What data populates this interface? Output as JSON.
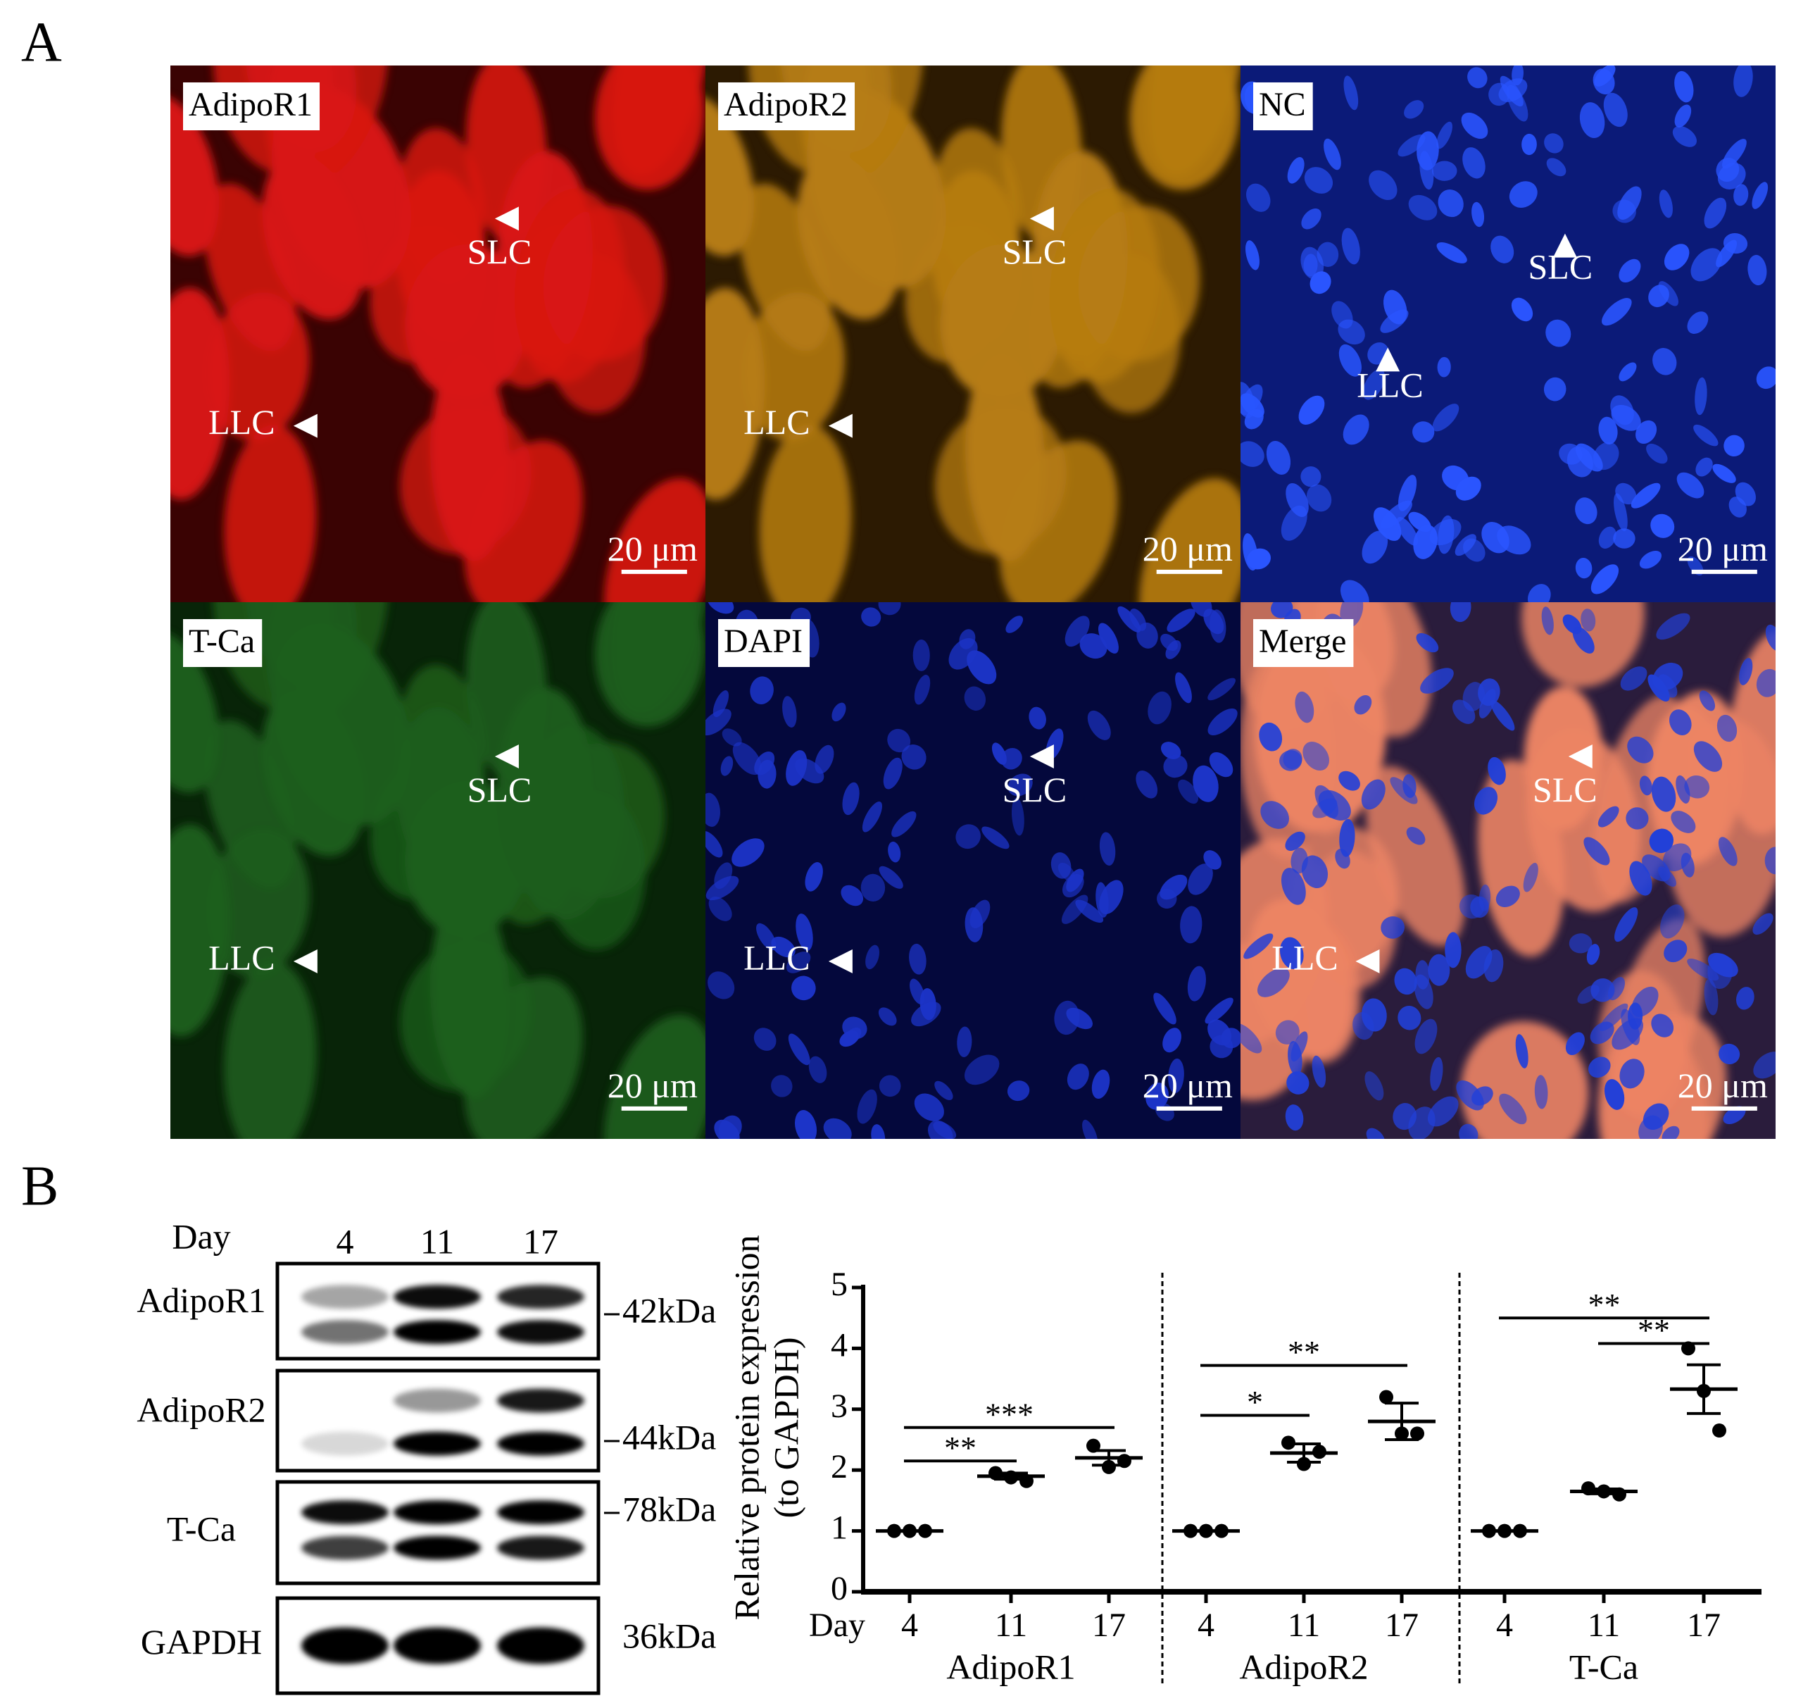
{
  "panel_a": {
    "letter": "A",
    "panels": [
      {
        "label": "AdipoR1",
        "color": "#e8241e"
      },
      {
        "label": "AdipoR2",
        "color": "#a8901c"
      },
      {
        "label": "NC",
        "color": "#000000"
      },
      {
        "label": "T-Ca",
        "color": "#22c030"
      },
      {
        "label": "DAPI",
        "color": "#1a1ae0"
      },
      {
        "label": "Merge",
        "color": "#000000"
      }
    ],
    "markers": {
      "slc": "SLC",
      "llc": "LLC"
    },
    "scale_bar": "20 μm"
  },
  "panel_b": {
    "letter": "B",
    "blot": {
      "day_label": "Day",
      "lanes": [
        "4",
        "11",
        "17"
      ],
      "rows": [
        {
          "protein": "AdipoR1",
          "size": "42kDa"
        },
        {
          "protein": "AdipoR2",
          "size": "44kDa"
        },
        {
          "protein": "T-Ca",
          "size": "78kDa"
        },
        {
          "protein": "GAPDH",
          "size": "36kDa"
        }
      ]
    }
  },
  "chart_data": {
    "type": "dotplot",
    "ylabel": [
      "Relative protein expression",
      "(to GAPDH)"
    ],
    "xlabel": "Day",
    "color": "#000000",
    "ylim": [
      0,
      5
    ],
    "yticks": [
      0,
      1,
      2,
      3,
      4,
      5
    ],
    "categories": [
      "4",
      "11",
      "17"
    ],
    "groups": [
      {
        "name": "AdipoR1",
        "points": [
          [
            1,
            1,
            1
          ],
          [
            1.95,
            1.88,
            1.82
          ],
          [
            2.4,
            2.05,
            2.15
          ]
        ],
        "mean": [
          1,
          1.9,
          2.2
        ],
        "sem": [
          0,
          0.05,
          0.12
        ],
        "significance": [
          {
            "label": "**",
            "between": [
              "4",
              "11"
            ]
          },
          {
            "label": "***",
            "between": [
              "4",
              "17"
            ]
          }
        ]
      },
      {
        "name": "AdipoR2",
        "points": [
          [
            1,
            1,
            1
          ],
          [
            2.45,
            2.1,
            2.3
          ],
          [
            3.2,
            2.6,
            2.6
          ]
        ],
        "mean": [
          1,
          2.28,
          2.8
        ],
        "sem": [
          0,
          0.15,
          0.3
        ],
        "significance": [
          {
            "label": "*",
            "between": [
              "4",
              "11"
            ]
          },
          {
            "label": "**",
            "between": [
              "4",
              "17"
            ]
          }
        ]
      },
      {
        "name": "T-Ca",
        "points": [
          [
            1,
            1,
            1
          ],
          [
            1.7,
            1.65,
            1.6
          ],
          [
            4.0,
            3.3,
            2.65
          ]
        ],
        "mean": [
          1,
          1.65,
          3.33
        ],
        "sem": [
          0,
          0.04,
          0.4
        ],
        "significance": [
          {
            "label": "**",
            "between": [
              "4",
              "17"
            ]
          },
          {
            "label": "**",
            "between": [
              "11",
              "17"
            ]
          }
        ]
      }
    ]
  }
}
